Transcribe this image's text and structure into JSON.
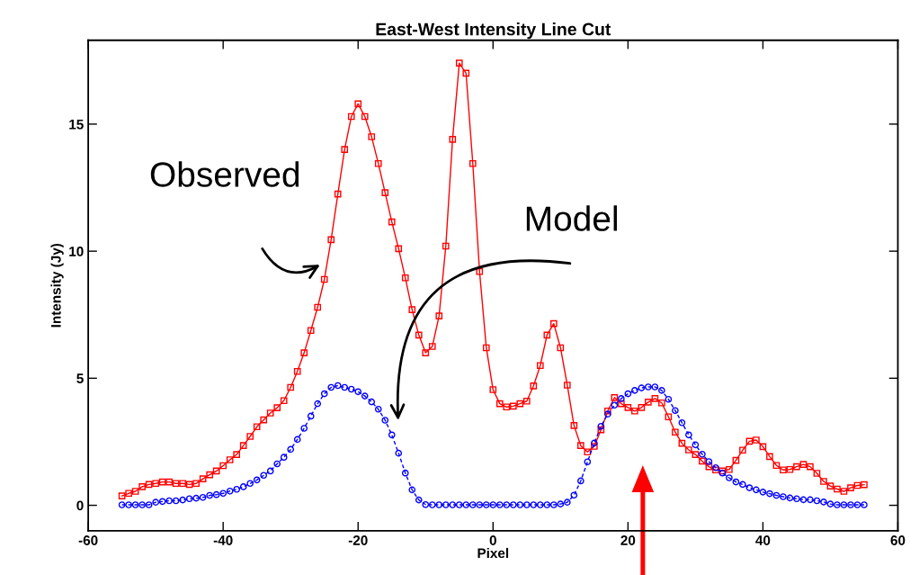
{
  "chart_data": {
    "type": "line",
    "title": "East-West Intensity Line Cut",
    "xlabel": "Pixel",
    "ylabel": "Intensity (Jy)",
    "xlim": [
      -60,
      60
    ],
    "xticks": [
      -60,
      -40,
      -20,
      0,
      20,
      40,
      60
    ],
    "ylim": [
      -1,
      18.3
    ],
    "yticks": [
      0,
      5,
      10,
      15
    ],
    "grid": false,
    "legend": false,
    "x": [
      -55,
      -54,
      -53,
      -52,
      -51,
      -50,
      -49,
      -48,
      -47,
      -46,
      -45,
      -44,
      -43,
      -42,
      -41,
      -40,
      -39,
      -38,
      -37,
      -36,
      -35,
      -34,
      -33,
      -32,
      -31,
      -30,
      -29,
      -28,
      -27,
      -26,
      -25,
      -24,
      -23,
      -22,
      -21,
      -20,
      -19,
      -18,
      -17,
      -16,
      -15,
      -14,
      -13,
      -12,
      -11,
      -10,
      -9,
      -8,
      -7,
      -6,
      -5,
      -4,
      -3,
      -2,
      -1,
      0,
      1,
      2,
      3,
      4,
      5,
      6,
      7,
      8,
      9,
      10,
      11,
      12,
      13,
      14,
      15,
      16,
      17,
      18,
      19,
      20,
      21,
      22,
      23,
      24,
      25,
      26,
      27,
      28,
      29,
      30,
      31,
      32,
      33,
      34,
      35,
      36,
      37,
      38,
      39,
      40,
      41,
      42,
      43,
      44,
      45,
      46,
      47,
      48,
      49,
      50,
      51,
      52,
      53,
      54,
      55
    ],
    "series": [
      {
        "color": "#ff0000",
        "marker": "square",
        "line_style": "solid",
        "values": [
          0.37,
          0.47,
          0.55,
          0.73,
          0.82,
          0.86,
          0.92,
          0.92,
          0.86,
          0.86,
          0.82,
          0.86,
          1.04,
          1.2,
          1.35,
          1.56,
          1.79,
          2.0,
          2.35,
          2.71,
          3.09,
          3.36,
          3.63,
          3.84,
          4.12,
          4.64,
          5.27,
          6.0,
          6.88,
          7.79,
          8.89,
          10.45,
          12.25,
          14.0,
          15.3,
          15.8,
          15.3,
          14.5,
          13.45,
          12.3,
          11.15,
          10.1,
          8.95,
          7.7,
          6.7,
          6.0,
          6.25,
          7.45,
          10.2,
          14.4,
          17.4,
          17.0,
          13.45,
          9.2,
          6.2,
          4.55,
          4.0,
          3.87,
          3.9,
          4.0,
          4.1,
          4.7,
          5.5,
          6.7,
          7.15,
          6.2,
          4.73,
          3.14,
          2.35,
          2.1,
          2.32,
          2.97,
          3.71,
          4.24,
          4.0,
          3.85,
          3.71,
          3.85,
          4.06,
          4.2,
          4.03,
          3.48,
          2.88,
          2.44,
          2.18,
          2.0,
          1.74,
          1.52,
          1.39,
          1.35,
          1.41,
          1.77,
          2.17,
          2.52,
          2.57,
          2.31,
          1.92,
          1.57,
          1.39,
          1.41,
          1.52,
          1.61,
          1.52,
          1.26,
          0.94,
          0.76,
          0.64,
          0.55,
          0.69,
          0.78,
          0.81
        ]
      },
      {
        "color": "#0000ff",
        "marker": "circle",
        "line_style": "dashed",
        "values": [
          0.02,
          0.02,
          0.02,
          0.02,
          0.02,
          0.12,
          0.15,
          0.18,
          0.18,
          0.21,
          0.26,
          0.28,
          0.31,
          0.39,
          0.42,
          0.47,
          0.56,
          0.63,
          0.73,
          0.86,
          1.0,
          1.18,
          1.35,
          1.63,
          1.89,
          2.2,
          2.59,
          3.03,
          3.51,
          4.0,
          4.39,
          4.64,
          4.71,
          4.64,
          4.57,
          4.47,
          4.3,
          4.07,
          3.78,
          3.35,
          2.77,
          2.05,
          1.27,
          0.61,
          0.21,
          0.03,
          0.02,
          0.02,
          0.02,
          0.02,
          0.02,
          0.02,
          0.02,
          0.02,
          0.02,
          0.02,
          0.02,
          0.02,
          0.02,
          0.02,
          0.02,
          0.02,
          0.02,
          0.02,
          0.02,
          0.05,
          0.12,
          0.4,
          0.96,
          1.71,
          2.45,
          3.11,
          3.59,
          3.94,
          4.2,
          4.39,
          4.52,
          4.62,
          4.66,
          4.66,
          4.52,
          4.17,
          3.73,
          3.25,
          2.77,
          2.38,
          2.01,
          1.72,
          1.48,
          1.27,
          1.08,
          0.92,
          0.82,
          0.69,
          0.61,
          0.52,
          0.46,
          0.39,
          0.34,
          0.29,
          0.26,
          0.22,
          0.22,
          0.18,
          0.13,
          0.05,
          0.02,
          0.02,
          0.02,
          0.02,
          0.02
        ]
      }
    ],
    "annotations": [
      "Observed",
      "Model"
    ]
  }
}
